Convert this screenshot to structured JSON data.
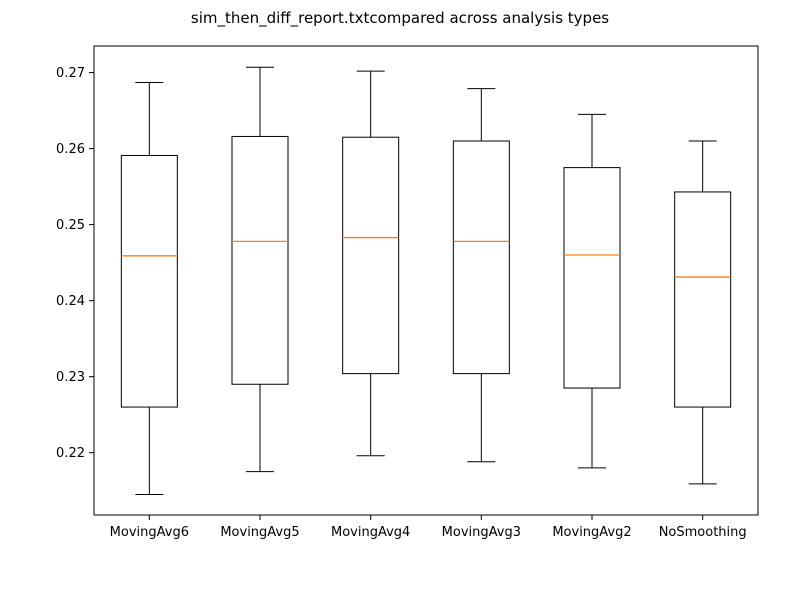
{
  "chart_data": {
    "type": "box",
    "title": "sim_then_diff_report.txtcompared across analysis types",
    "xlabel": "",
    "ylabel": "",
    "ylim": [
      0.2118,
      0.2735
    ],
    "yticks": [
      "0.22",
      "0.23",
      "0.24",
      "0.25",
      "0.26",
      "0.27"
    ],
    "ytick_values": [
      0.22,
      0.23,
      0.24,
      0.25,
      0.26,
      0.27
    ],
    "grid": false,
    "colors": {
      "box": "#000000",
      "median": "#ff7f0e",
      "whisker": "#000000"
    },
    "categories": [
      "MovingAvg6",
      "MovingAvg5",
      "MovingAvg4",
      "MovingAvg3",
      "MovingAvg2",
      "NoSmoothing"
    ],
    "boxes": [
      {
        "whislo": 0.2145,
        "q1": 0.226,
        "med": 0.2459,
        "q3": 0.2591,
        "whishi": 0.2687
      },
      {
        "whislo": 0.2175,
        "q1": 0.229,
        "med": 0.2478,
        "q3": 0.2616,
        "whishi": 0.2707
      },
      {
        "whislo": 0.2196,
        "q1": 0.2304,
        "med": 0.2483,
        "q3": 0.2615,
        "whishi": 0.2702
      },
      {
        "whislo": 0.2188,
        "q1": 0.2304,
        "med": 0.2478,
        "q3": 0.261,
        "whishi": 0.2679
      },
      {
        "whislo": 0.218,
        "q1": 0.2285,
        "med": 0.246,
        "q3": 0.2575,
        "whishi": 0.2645
      },
      {
        "whislo": 0.2159,
        "q1": 0.226,
        "med": 0.2431,
        "q3": 0.2543,
        "whishi": 0.261
      }
    ]
  }
}
